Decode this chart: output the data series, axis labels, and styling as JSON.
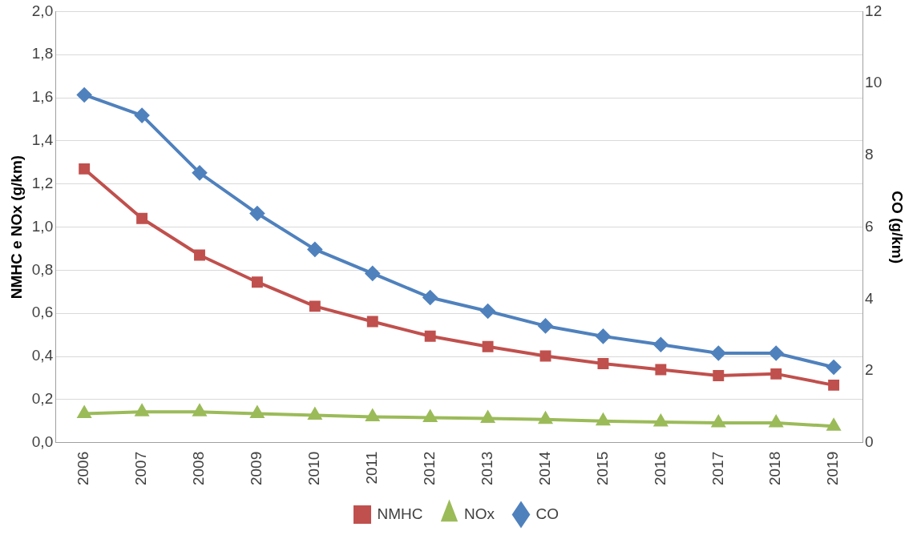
{
  "chart_data": {
    "type": "line",
    "ylabel": "NMHC e NOx (g/km)",
    "y2label": "CO (g/km)",
    "categories": [
      "2006",
      "2007",
      "2008",
      "2009",
      "2010",
      "2011",
      "2012",
      "2013",
      "2014",
      "2015",
      "2016",
      "2017",
      "2018",
      "2019"
    ],
    "series": [
      {
        "name": "NMHC",
        "color": "#c0504d",
        "marker": "square",
        "values": [
          1.27,
          1.04,
          0.87,
          0.745,
          0.633,
          0.562,
          0.494,
          0.446,
          0.402,
          0.367,
          0.339,
          0.311,
          0.319,
          0.267
        ]
      },
      {
        "name": "NOx",
        "color": "#9bbb59",
        "marker": "triangle",
        "values": [
          0.135,
          0.143,
          0.143,
          0.135,
          0.127,
          0.12,
          0.116,
          0.112,
          0.108,
          0.1,
          0.096,
          0.092,
          0.092,
          0.076
        ]
      },
      {
        "name": "CO",
        "color": "#4f81bd",
        "marker": "diamond",
        "axis": "y2",
        "values": [
          9.68,
          9.11,
          7.51,
          6.38,
          5.38,
          4.71,
          4.04,
          3.66,
          3.25,
          2.96,
          2.73,
          2.49,
          2.49,
          2.1
        ]
      }
    ],
    "ylim": [
      0,
      2
    ],
    "yticks": [
      {
        "value": 0,
        "label": "0,0"
      },
      {
        "value": 0.2,
        "label": "0,2"
      },
      {
        "value": 0.4,
        "label": "0,4"
      },
      {
        "value": 0.6,
        "label": "0,6"
      },
      {
        "value": 0.8,
        "label": "0,8"
      },
      {
        "value": 1,
        "label": "1,0"
      },
      {
        "value": 1.2,
        "label": "1,2"
      },
      {
        "value": 1.4,
        "label": "1,4"
      },
      {
        "value": 1.6,
        "label": "1,6"
      },
      {
        "value": 1.8,
        "label": "1,8"
      },
      {
        "value": 2,
        "label": "2,0"
      }
    ],
    "y2lim": [
      0,
      12
    ],
    "y2ticks": [
      0,
      2,
      4,
      6,
      8,
      10,
      12
    ],
    "grid": "y",
    "legend": "bottom",
    "line_style": "solid"
  }
}
